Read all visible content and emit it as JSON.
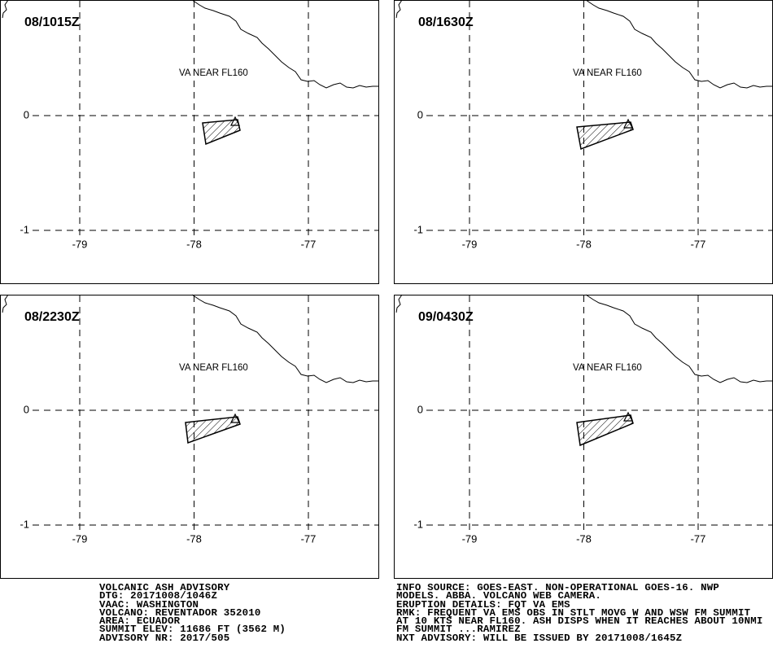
{
  "panels": [
    {
      "label": "08/1015Z",
      "annotation": "VA NEAR FL160"
    },
    {
      "label": "08/1630Z",
      "annotation": "VA NEAR FL160"
    },
    {
      "label": "08/2230Z",
      "annotation": "VA NEAR FL160"
    },
    {
      "label": "09/0430Z",
      "annotation": "VA NEAR FL160"
    }
  ],
  "lon_ticks": [
    -79,
    -78,
    -77
  ],
  "lat_ticks": [
    0,
    -1
  ],
  "advisory_left": [
    "VOLCANIC ASH ADVISORY",
    "DTG: 20171008/1046Z",
    "VAAC: WASHINGTON",
    "VOLCANO: REVENTADOR 352010",
    "AREA: ECUADOR",
    "SUMMIT ELEV: 11686 FT (3562 M)",
    "ADVISORY NR: 2017/505"
  ],
  "advisory_right": [
    "INFO SOURCE: GOES-EAST. NON-OPERATIONAL GOES-16. NWP",
    "MODELS. ABBA. VOLCANO WEB CAMERA.",
    "ERUPTION DETAILS: FQT VA EMS",
    "RMK: FREQUENT VA EMS OBS IN STLT MOVG W AND WSW FM SUMMIT",
    "AT 10 KTS NEAR FL160. ASH DISPS WHEN IT REACHES ABOUT 10NMI",
    "FM SUMMIT ...RAMIREZ",
    "NXT ADVISORY: WILL BE ISSUED BY 20171008/1645Z"
  ]
}
